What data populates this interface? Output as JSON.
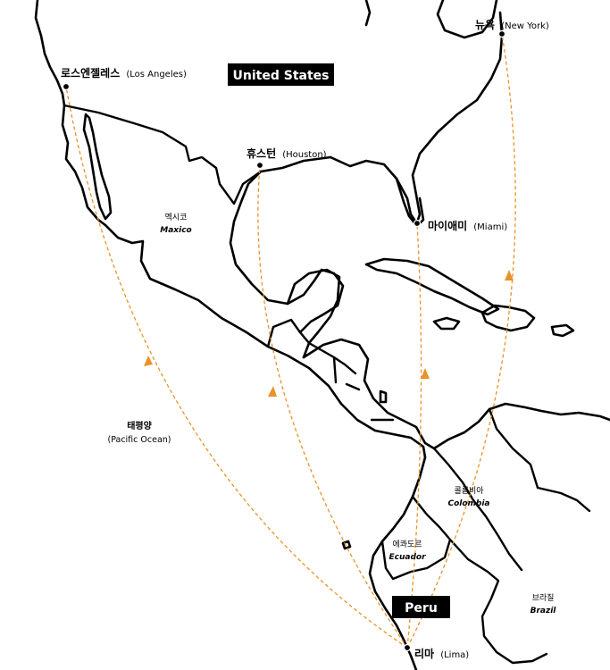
{
  "map": {
    "route_color": "#e8932a",
    "title_box_color": "#000000",
    "title_text_color": "#ffffff"
  },
  "countries": {
    "united_states": {
      "label": "United States"
    },
    "peru": {
      "label": "Peru"
    },
    "mexico": {
      "label_ko": "멕시코",
      "label_en": "Maxico"
    },
    "colombia": {
      "label_ko": "콜롬비아",
      "label_en": "Colombia"
    },
    "ecuador": {
      "label_ko": "에콰도르",
      "label_en": "Ecuador"
    },
    "brazil": {
      "label_ko": "브라질",
      "label_en": "Brazil"
    }
  },
  "ocean": {
    "label_ko": "태평양",
    "label_en": "(Pacific Ocean)"
  },
  "cities": {
    "new_york": {
      "label_ko": "뉴욕",
      "label_en": "(New York)"
    },
    "los_angeles": {
      "label_ko": "로스엔젤레스",
      "label_en": "(Los Angeles)"
    },
    "houston": {
      "label_ko": "휴스턴",
      "label_en": "(Houston)"
    },
    "miami": {
      "label_ko": "마이애미",
      "label_en": "(Miami)"
    },
    "lima": {
      "label_ko": "리마",
      "label_en": "(Lima)"
    }
  },
  "routes": [
    {
      "from": "lima",
      "to": "los_angeles"
    },
    {
      "from": "lima",
      "to": "houston"
    },
    {
      "from": "lima",
      "to": "miami"
    },
    {
      "from": "lima",
      "to": "new_york"
    }
  ]
}
